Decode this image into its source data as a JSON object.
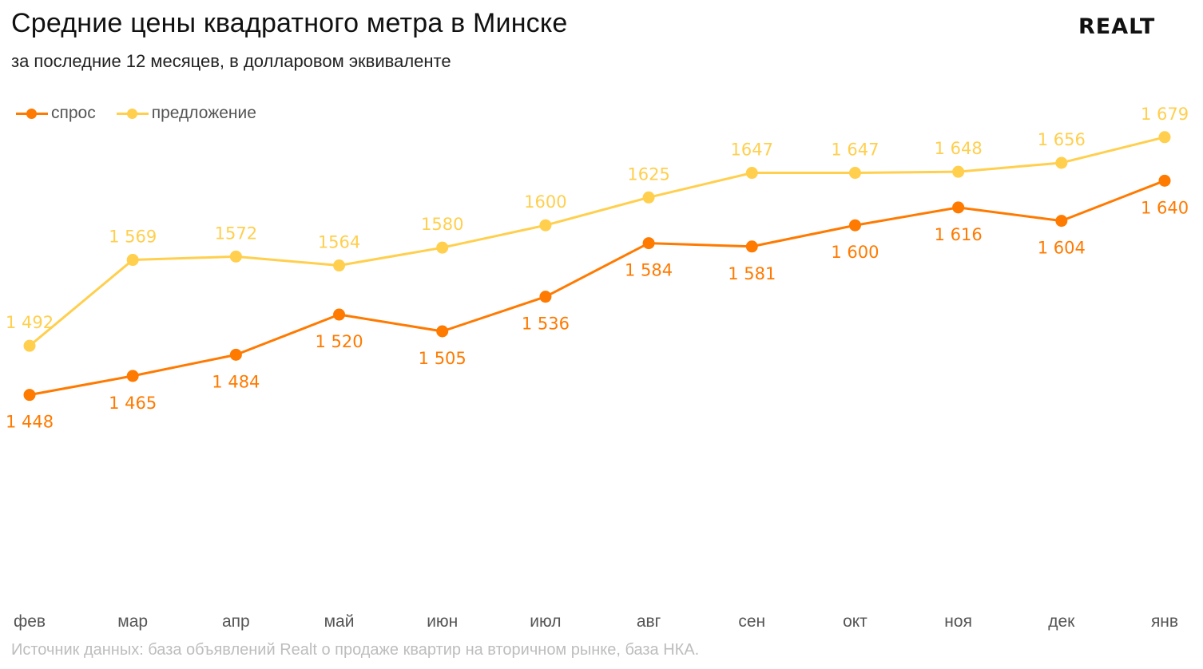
{
  "header": {
    "title": "Средние цены квадратного метра в Минске",
    "subtitle": "за последние 12 месяцев, в долларовом эквиваленте",
    "logo": "REALT"
  },
  "footer": {
    "source": "Источник данных: база объявлений Realt о продаже квартир на вторичном рынке, база НКА."
  },
  "colors": {
    "demand": "#ff7a00",
    "supply": "#ffcf4d",
    "tick_text": "#555555",
    "source_text": "#bdbdbd"
  },
  "chart_data": {
    "type": "line",
    "title": "Средние цены квадратного метра в Минске",
    "subtitle": "за последние 12 месяцев, в долларовом эквиваленте",
    "xlabel": "",
    "ylabel": "",
    "grid": false,
    "legend_position": "top-left",
    "categories": [
      "фев",
      "мар",
      "апр",
      "май",
      "июн",
      "июл",
      "авг",
      "сен",
      "окт",
      "ноя",
      "дек",
      "янв"
    ],
    "ylim": [
      1256,
      1759
    ],
    "series": [
      {
        "name": "спрос",
        "color": "#ff7a00",
        "values": [
          1448,
          1465,
          1484,
          1520,
          1505,
          1536,
          1584,
          1581,
          1600,
          1616,
          1604,
          1640
        ],
        "labels": [
          "1 448",
          "1 465",
          "1 484",
          "1 520",
          "1 505",
          "1 536",
          "1 584",
          "1 581",
          "1 600",
          "1 616",
          "1 604",
          "1 640"
        ],
        "label_position": "below"
      },
      {
        "name": "предложение",
        "color": "#ffcf4d",
        "values": [
          1492,
          1569,
          1572,
          1564,
          1580,
          1600,
          1625,
          1647,
          1647,
          1648,
          1656,
          1679
        ],
        "labels": [
          "1 492",
          "1 569",
          "1572",
          "1564",
          "1580",
          "1600",
          "1625",
          "1647",
          "1 647",
          "1 648",
          "1 656",
          "1 679"
        ],
        "label_position": "above"
      }
    ]
  }
}
